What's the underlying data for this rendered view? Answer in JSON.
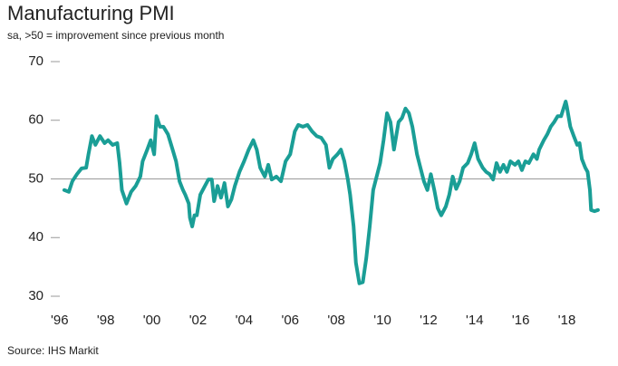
{
  "chart_data": {
    "type": "line",
    "title": "Manufacturing PMI",
    "subtitle": "sa, >50 = improvement since previous month",
    "source": "Source: IHS Markit",
    "color": "#1a9e96",
    "x": [
      1996.2,
      1996.4,
      1996.55,
      1996.75,
      1996.95,
      1997.15,
      1997.25,
      1997.4,
      1997.55,
      1997.75,
      1997.95,
      1998.1,
      1998.3,
      1998.5,
      1998.6,
      1998.7,
      1998.9,
      1999.1,
      1999.3,
      1999.5,
      1999.6,
      1999.8,
      1999.95,
      2000.1,
      2000.2,
      2000.35,
      2000.5,
      2000.7,
      2000.9,
      2001.05,
      2001.2,
      2001.35,
      2001.45,
      2001.6,
      2001.65,
      2001.75,
      2001.85,
      2001.95,
      2002.1,
      2002.3,
      2002.45,
      2002.6,
      2002.7,
      2002.85,
      2003.0,
      2003.15,
      2003.3,
      2003.45,
      2003.6,
      2003.8,
      2004.0,
      2004.2,
      2004.4,
      2004.55,
      2004.7,
      2004.9,
      2005.05,
      2005.2,
      2005.4,
      2005.6,
      2005.8,
      2006.0,
      2006.2,
      2006.35,
      2006.55,
      2006.75,
      2006.95,
      2007.15,
      2007.35,
      2007.55,
      2007.7,
      2007.85,
      2008.05,
      2008.2,
      2008.35,
      2008.5,
      2008.6,
      2008.75,
      2008.85,
      2009.0,
      2009.15,
      2009.3,
      2009.45,
      2009.6,
      2009.75,
      2009.9,
      2010.05,
      2010.2,
      2010.35,
      2010.5,
      2010.7,
      2010.85,
      2011.0,
      2011.15,
      2011.3,
      2011.5,
      2011.65,
      2011.8,
      2011.95,
      2012.1,
      2012.25,
      2012.4,
      2012.55,
      2012.75,
      2012.9,
      2013.05,
      2013.2,
      2013.35,
      2013.5,
      2013.7,
      2013.85,
      2014.0,
      2014.15,
      2014.35,
      2014.5,
      2014.65,
      2014.8,
      2014.95,
      2015.1,
      2015.25,
      2015.4,
      2015.55,
      2015.75,
      2015.9,
      2016.05,
      2016.2,
      2016.35,
      2016.55,
      2016.7,
      2016.8,
      2017.0,
      2017.15,
      2017.3,
      2017.45,
      2017.6,
      2017.75,
      2017.95,
      2018.0,
      2018.15,
      2018.3,
      2018.45,
      2018.55,
      2018.65,
      2018.8,
      2018.9,
      2019.0,
      2019.05,
      2019.2,
      2019.35
    ],
    "values": [
      48.1,
      47.8,
      49.6,
      50.8,
      51.8,
      51.9,
      54.2,
      57.3,
      55.8,
      57.3,
      56.1,
      56.6,
      55.8,
      56.1,
      52.7,
      48.1,
      45.8,
      47.8,
      48.8,
      50.4,
      53.0,
      55.0,
      56.6,
      54.2,
      60.7,
      58.9,
      58.9,
      57.6,
      55.0,
      53.0,
      49.6,
      48.1,
      47.3,
      45.8,
      43.4,
      41.9,
      43.8,
      43.8,
      47.3,
      48.8,
      49.9,
      49.9,
      46.2,
      48.8,
      46.8,
      49.3,
      45.3,
      46.5,
      48.8,
      51.2,
      53.0,
      55.0,
      56.6,
      55.0,
      51.9,
      50.4,
      52.4,
      49.9,
      50.4,
      49.6,
      53.0,
      54.2,
      58.1,
      59.2,
      58.9,
      59.2,
      58.1,
      57.3,
      57.0,
      55.8,
      51.9,
      53.4,
      54.2,
      55.0,
      53.0,
      49.9,
      47.3,
      41.9,
      35.7,
      32.2,
      32.4,
      36.5,
      41.9,
      48.1,
      50.4,
      52.7,
      56.6,
      61.2,
      59.7,
      55.0,
      59.7,
      60.4,
      62.0,
      61.2,
      58.9,
      54.2,
      51.9,
      49.6,
      48.1,
      50.8,
      48.1,
      45.0,
      43.8,
      45.3,
      47.3,
      50.4,
      48.3,
      49.6,
      51.9,
      52.7,
      54.2,
      56.1,
      53.4,
      51.9,
      51.2,
      50.8,
      49.9,
      52.7,
      51.2,
      52.4,
      51.2,
      53.0,
      52.4,
      53.0,
      51.5,
      53.0,
      52.7,
      54.2,
      53.4,
      55.0,
      56.6,
      57.6,
      58.9,
      59.7,
      60.7,
      60.7,
      63.2,
      62.3,
      58.9,
      57.3,
      55.8,
      56.1,
      53.4,
      51.9,
      51.2,
      48.1,
      44.7,
      44.5,
      44.7
    ],
    "xlim": [
      1995.85,
      2019.55
    ],
    "xticks": [
      {
        "value": 1996,
        "label": "'96"
      },
      {
        "value": 1998,
        "label": "'98"
      },
      {
        "value": 2000,
        "label": "'00"
      },
      {
        "value": 2002,
        "label": "'02"
      },
      {
        "value": 2004,
        "label": "'04"
      },
      {
        "value": 2006,
        "label": "'06"
      },
      {
        "value": 2008,
        "label": "'08"
      },
      {
        "value": 2010,
        "label": "'10"
      },
      {
        "value": 2012,
        "label": "'12"
      },
      {
        "value": 2014,
        "label": "'14"
      },
      {
        "value": 2016,
        "label": "'16"
      },
      {
        "value": 2018,
        "label": "'18"
      }
    ],
    "ylim": [
      30,
      70
    ],
    "yticks": [
      30,
      40,
      50,
      60,
      70
    ],
    "refline": 50
  }
}
